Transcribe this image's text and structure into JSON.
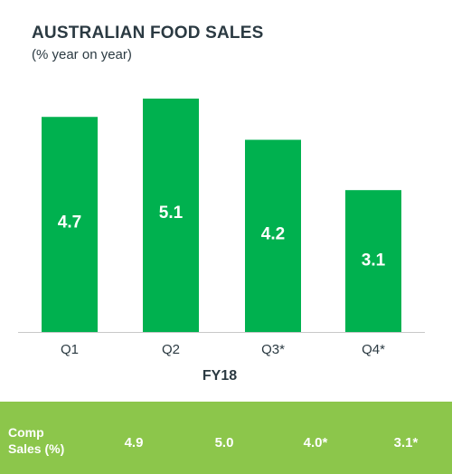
{
  "chart_data": {
    "type": "bar",
    "title": "AUSTRALIAN FOOD SALES",
    "subtitle": "(% year on year)",
    "categories": [
      "Q1",
      "Q2",
      "Q3*",
      "Q4*"
    ],
    "values": [
      4.7,
      5.1,
      4.2,
      3.1
    ],
    "data_labels": [
      "4.7",
      "5.1",
      "4.2",
      "3.1"
    ],
    "xlabel": "FY18",
    "ylabel": "",
    "bar_color": "#00b14f",
    "grid": false
  },
  "footer": {
    "label_line1": "Comp",
    "label_line2": "Sales (%)",
    "values": [
      "4.9",
      "5.0",
      "4.0*",
      "3.1*"
    ],
    "background": "#8cc64b"
  }
}
